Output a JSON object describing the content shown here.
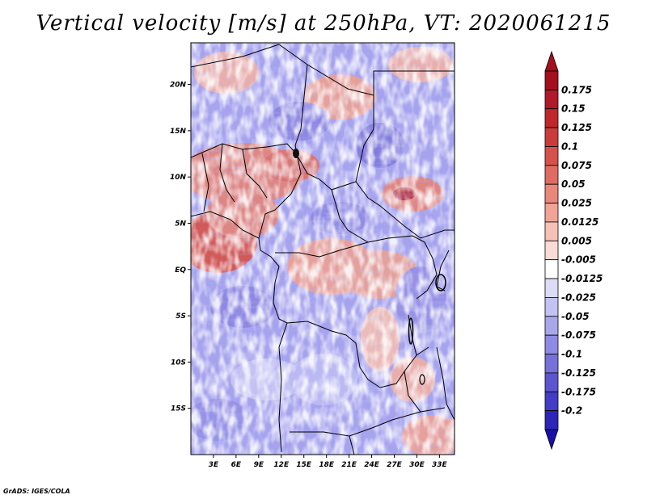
{
  "title": "Vertical velocity [m/s] at 250hPa, VT: 2020061215",
  "credit": "GrADS: IGES/COLA",
  "map": {
    "region": "Central Africa",
    "variable": "Vertical velocity",
    "units": "m/s",
    "level": "250hPa",
    "valid_time": "2020061215",
    "lon_range": [
      0,
      35
    ],
    "lat_range": [
      -20,
      24.5
    ],
    "lat_ticks": [
      {
        "value": 20,
        "label": "20N"
      },
      {
        "value": 15,
        "label": "15N"
      },
      {
        "value": 10,
        "label": "10N"
      },
      {
        "value": 5,
        "label": "5N"
      },
      {
        "value": 0,
        "label": "EQ"
      },
      {
        "value": -5,
        "label": "5S"
      },
      {
        "value": -10,
        "label": "10S"
      },
      {
        "value": -15,
        "label": "15S"
      }
    ],
    "lon_ticks": [
      {
        "value": 3,
        "label": "3E"
      },
      {
        "value": 6,
        "label": "6E"
      },
      {
        "value": 9,
        "label": "9E"
      },
      {
        "value": 12,
        "label": "12E"
      },
      {
        "value": 15,
        "label": "15E"
      },
      {
        "value": 18,
        "label": "18E"
      },
      {
        "value": 21,
        "label": "21E"
      },
      {
        "value": 24,
        "label": "24E"
      },
      {
        "value": 27,
        "label": "27E"
      },
      {
        "value": 30,
        "label": "30E"
      },
      {
        "value": 33,
        "label": "33E"
      }
    ]
  },
  "colorbar": {
    "levels": [
      {
        "label": "0.175",
        "color": "#b2182b"
      },
      {
        "label": "0.15",
        "color": "#c0272d"
      },
      {
        "label": "0.125",
        "color": "#cc3b3b"
      },
      {
        "label": "0.1",
        "color": "#d6504c"
      },
      {
        "label": "0.075",
        "color": "#e06b62"
      },
      {
        "label": "0.05",
        "color": "#ea877b"
      },
      {
        "label": "0.025",
        "color": "#f1a398"
      },
      {
        "label": "0.0125",
        "color": "#f6c0b7"
      },
      {
        "label": "0.005",
        "color": "#fadcd6"
      },
      {
        "label": "-0.005",
        "color": "#ffffff"
      },
      {
        "label": "-0.0125",
        "color": "#dcdcf7"
      },
      {
        "label": "-0.025",
        "color": "#c4c2f2"
      },
      {
        "label": "-0.05",
        "color": "#aaa6ec"
      },
      {
        "label": "-0.075",
        "color": "#8f8ae4"
      },
      {
        "label": "-0.1",
        "color": "#7670db"
      },
      {
        "label": "-0.125",
        "color": "#5c55d2"
      },
      {
        "label": "-0.175",
        "color": "#433cc7"
      },
      {
        "label": "-0.2",
        "color": "#2d25b9"
      }
    ],
    "top_color": "#a50f1e",
    "bottom_color": "#1a10a8"
  }
}
